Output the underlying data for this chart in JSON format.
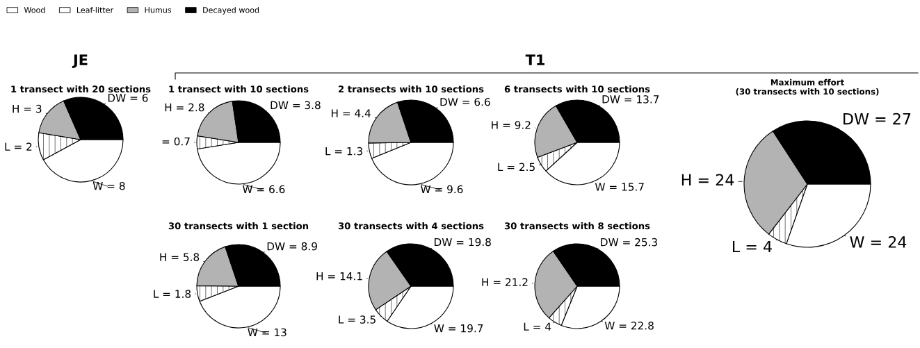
{
  "chart_data": [
    {
      "type": "pie",
      "title": "1 transect with 20 sections",
      "annotations": [
        "JE"
      ],
      "legend": "top right",
      "categories": [
        "Wood",
        "Leaf-litter",
        "Humus",
        "Decayed wood"
      ],
      "values": [
        8,
        2,
        3,
        6
      ],
      "colors": [
        "#ffffff",
        "#ffffff",
        "#b3b3b3",
        "#000000"
      ],
      "value_labels": [
        "W = 8",
        "L = 2",
        "H = 3",
        "DW = 6"
      ]
    },
    {
      "type": "pie",
      "title": "1 transect with 10 sections",
      "annotations": [
        "T1"
      ],
      "categories": [
        null,
        null,
        null,
        null
      ],
      "values": [
        6.6,
        0.7,
        2.8,
        3.8
      ],
      "colors": [
        "#ffffff",
        "#ffffff",
        "#b3b3b3",
        "#000000"
      ],
      "value_labels": [
        "W = 6.6",
        "= 0.7",
        "H = 2.8",
        "DW = 3.8"
      ]
    },
    {
      "type": "pie",
      "title": "2 transects with 10 sections",
      "categories": [
        null,
        null,
        null,
        null
      ],
      "values": [
        9.6,
        1.3,
        4.4,
        6.6
      ],
      "colors": [
        "#ffffff",
        "#ffffff",
        "#b3b3b3",
        "#000000"
      ],
      "value_labels": [
        "W = 9.6",
        "L = 1.3",
        "H = 4.4",
        "DW = 6.6"
      ]
    },
    {
      "type": "pie",
      "title": "6 transects with 10 sections",
      "categories": [
        null,
        null,
        null,
        null
      ],
      "values": [
        15.7,
        2.5,
        9.2,
        13.7
      ],
      "colors": [
        "#ffffff",
        "#ffffff",
        "#b3b3b3",
        "#000000"
      ],
      "value_labels": [
        "W = 15.7",
        "L = 2.5",
        "H = 9.2",
        "DW = 13.7"
      ]
    },
    {
      "type": "pie",
      "title": "30 transects with 1 section",
      "categories": [
        null,
        null,
        null,
        null
      ],
      "values": [
        13,
        1.8,
        5.8,
        8.9
      ],
      "colors": [
        "#ffffff",
        "#ffffff",
        "#b3b3b3",
        "#000000"
      ],
      "value_labels": [
        "W = 13",
        "L = 1.8",
        "H = 5.8",
        "DW = 8.9"
      ]
    },
    {
      "type": "pie",
      "title": "30 transects with 4 sections",
      "categories": [
        null,
        null,
        null,
        null
      ],
      "values": [
        19.7,
        3.5,
        14.1,
        19.8
      ],
      "colors": [
        "#ffffff",
        "#ffffff",
        "#b3b3b3",
        "#000000"
      ],
      "value_labels": [
        "W = 19.7",
        "L = 3.5",
        "H = 14.1",
        "DW = 19.8"
      ]
    },
    {
      "type": "pie",
      "title": "30 transects with 8 sections",
      "categories": [
        null,
        null,
        null,
        null
      ],
      "values": [
        22.8,
        4,
        21.2,
        25.3
      ],
      "colors": [
        "#ffffff",
        "#ffffff",
        "#b3b3b3",
        "#000000"
      ],
      "value_labels": [
        "W = 22.8",
        "L = 4",
        "H = 21.2",
        "DW = 25.3"
      ]
    },
    {
      "type": "pie",
      "title": "Maximum effort\n(30 transects with 10 sections)",
      "categories": [
        null,
        null,
        null,
        null
      ],
      "values": [
        24,
        4,
        24,
        27
      ],
      "colors": [
        "#ffffff",
        "#ffffff",
        "#b3b3b3",
        "#000000"
      ],
      "value_labels": [
        "W = 24",
        "L = 4",
        "H = 24",
        "DW = 27"
      ]
    }
  ]
}
